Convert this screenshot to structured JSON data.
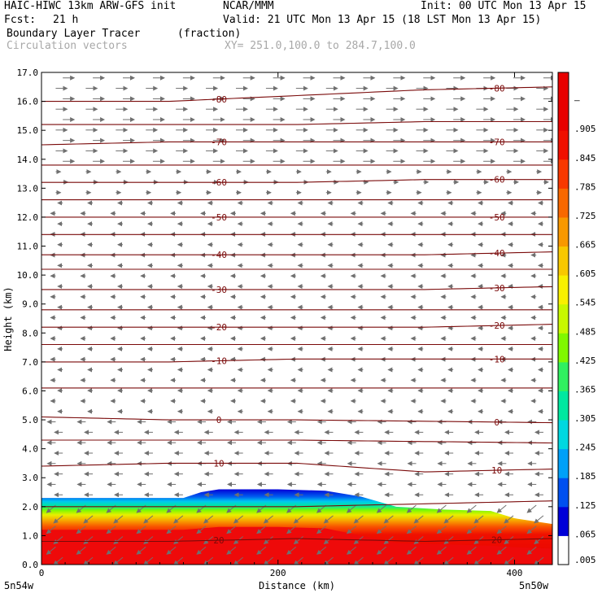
{
  "header": {
    "model": "HAIC-HIWC 13km ARW-GFS init",
    "org": "NCAR/MMM",
    "init": "Init: 00 UTC Mon 13 Apr 15",
    "fcst_label": "Fcst:",
    "fcst_value": "21 h",
    "valid": "Valid: 21 UTC Mon 13 Apr 15 (18 LST Mon 13 Apr 15)",
    "field1_name": "Boundary Layer Tracer",
    "field1_units": "(fraction)",
    "field2_name": "Circulation vectors",
    "xy_range": "XY= 251.0,100.0 to 284.7,100.0"
  },
  "colors": {
    "contour": "#7a0a0a",
    "arrow": "#707070",
    "header_gray": "#a8a8a8"
  },
  "chart_data": {
    "type": "cross-section",
    "xlabel": "Distance (km)",
    "ylabel": "Height (km)",
    "xlim": [
      0,
      432
    ],
    "ylim": [
      0,
      17
    ],
    "x_ticks": [
      0,
      200,
      400
    ],
    "y_ticks": [
      "0.0",
      "1.0",
      "2.0",
      "3.0",
      "4.0",
      "5.0",
      "6.0",
      "7.0",
      "8.0",
      "9.0",
      "10.0",
      "11.0",
      "12.0",
      "13.0",
      "14.0",
      "15.0",
      "16.0",
      "17.0"
    ],
    "x_endpoint_labels": [
      "5n54w",
      "5n50w"
    ],
    "colorbar": {
      "labels": [
        ".005",
        ".065",
        ".125",
        ".185",
        ".245",
        ".305",
        ".365",
        ".425",
        ".485",
        ".545",
        ".605",
        ".665",
        ".725",
        ".785",
        ".845",
        ".905",
        "–"
      ],
      "colors": [
        "#ffffff",
        "#0000d8",
        "#0050f0",
        "#00a0f8",
        "#00d8e0",
        "#00e8a0",
        "#30f060",
        "#80f800",
        "#c8f800",
        "#f8f000",
        "#f8c800",
        "#f89800",
        "#f86800",
        "#f83800",
        "#f01000",
        "#e80000",
        "#e80000"
      ]
    },
    "contours": [
      {
        "label": "-80",
        "y": [
          16.0,
          16.0,
          16.2,
          16.4,
          16.5
        ]
      },
      {
        "label": "",
        "y": [
          15.2,
          15.2,
          15.2,
          15.3,
          15.3
        ]
      },
      {
        "label": "-70",
        "y": [
          14.5,
          14.6,
          14.6,
          14.6,
          14.6
        ]
      },
      {
        "label": "",
        "y": [
          13.8,
          13.8,
          13.8,
          13.8,
          13.8
        ]
      },
      {
        "label": "-60",
        "y": [
          13.2,
          13.2,
          13.2,
          13.3,
          13.3
        ]
      },
      {
        "label": "",
        "y": [
          12.6,
          12.6,
          12.6,
          12.6,
          12.6
        ]
      },
      {
        "label": "-50",
        "y": [
          12.0,
          12.0,
          12.0,
          12.0,
          12.0
        ]
      },
      {
        "label": "",
        "y": [
          11.4,
          11.4,
          11.4,
          11.4,
          11.4
        ]
      },
      {
        "label": "-40",
        "y": [
          10.7,
          10.7,
          10.7,
          10.7,
          10.8
        ]
      },
      {
        "label": "",
        "y": [
          10.2,
          10.2,
          10.2,
          10.2,
          10.2
        ]
      },
      {
        "label": "-30",
        "y": [
          9.5,
          9.5,
          9.5,
          9.5,
          9.6
        ]
      },
      {
        "label": "",
        "y": [
          8.8,
          8.8,
          8.8,
          8.8,
          8.8
        ]
      },
      {
        "label": "-20",
        "y": [
          8.2,
          8.2,
          8.2,
          8.2,
          8.3
        ]
      },
      {
        "label": "",
        "y": [
          7.6,
          7.6,
          7.6,
          7.6,
          7.6
        ]
      },
      {
        "label": "-10",
        "y": [
          7.0,
          7.0,
          7.1,
          7.1,
          7.1
        ]
      },
      {
        "label": "",
        "y": [
          6.1,
          6.1,
          6.1,
          6.1,
          6.1
        ]
      },
      {
        "label": "0",
        "y": [
          5.1,
          5.0,
          5.0,
          4.95,
          4.9
        ]
      },
      {
        "label": "",
        "y": [
          4.3,
          4.3,
          4.3,
          4.25,
          4.2
        ]
      },
      {
        "label": "10",
        "y": [
          3.4,
          3.5,
          3.5,
          3.2,
          3.3
        ]
      },
      {
        "label": "",
        "y": [
          2.0,
          2.0,
          2.0,
          2.1,
          2.2
        ]
      },
      {
        "label": "20",
        "y": [
          0.8,
          0.8,
          0.9,
          0.8,
          0.9
        ]
      }
    ],
    "contour_x": [
      0,
      108,
      216,
      324,
      432
    ],
    "tracer_profile": {
      "x": [
        0,
        60,
        120,
        135,
        150,
        200,
        240,
        270,
        300,
        340,
        380,
        400,
        432
      ],
      "top": [
        2.3,
        2.3,
        2.3,
        2.5,
        2.6,
        2.6,
        2.55,
        2.35,
        2.0,
        1.9,
        1.85,
        1.6,
        1.4
      ],
      "red": [
        1.2,
        1.2,
        1.2,
        1.25,
        1.3,
        1.3,
        1.25,
        1.0,
        0.75,
        0.7,
        0.65,
        0.6,
        0.55
      ]
    },
    "wind_regimes": [
      {
        "y_from": 13.8,
        "y_to": 17.0,
        "direction": "east",
        "strength": "strong"
      },
      {
        "y_from": 12.5,
        "y_to": 13.8,
        "direction": "east",
        "strength": "weak"
      },
      {
        "y_from": 5.0,
        "y_to": 12.5,
        "direction": "west",
        "strength": "weak"
      },
      {
        "y_from": 2.2,
        "y_to": 5.0,
        "direction": "west",
        "strength": "moderate"
      },
      {
        "y_from": 0.0,
        "y_to": 2.2,
        "direction": "west",
        "strength": "descending"
      }
    ]
  }
}
